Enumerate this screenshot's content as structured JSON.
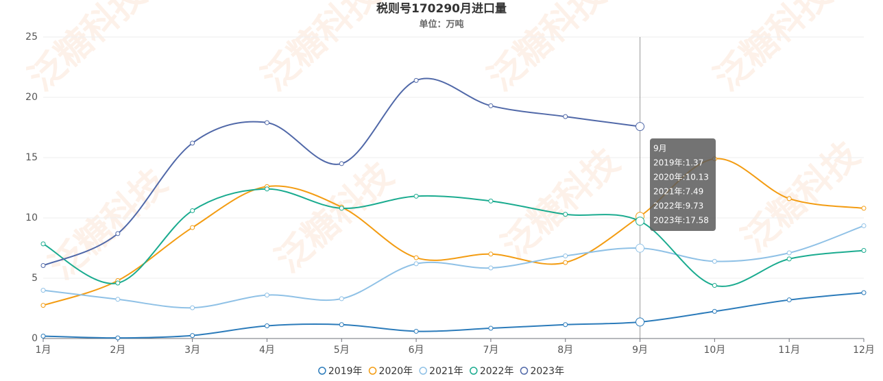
{
  "chart_data": {
    "type": "line",
    "title": "税则号170290月进口量",
    "subtitle": "单位：万吨",
    "watermark": "泛糖科技",
    "categories": [
      "1月",
      "2月",
      "3月",
      "4月",
      "5月",
      "6月",
      "7月",
      "8月",
      "9月",
      "10月",
      "11月",
      "12月"
    ],
    "series": [
      {
        "name": "2019年",
        "color": "#2b7bba",
        "values": [
          0.2,
          0.05,
          0.25,
          1.05,
          1.15,
          0.6,
          0.85,
          1.15,
          1.37,
          2.25,
          3.2,
          3.8
        ]
      },
      {
        "name": "2020年",
        "color": "#f39c12",
        "values": [
          2.75,
          4.8,
          9.2,
          12.6,
          10.9,
          6.7,
          7.0,
          6.3,
          10.13,
          14.9,
          11.6,
          10.8
        ]
      },
      {
        "name": "2021年",
        "color": "#8fc1e6",
        "values": [
          4.0,
          3.25,
          2.55,
          3.6,
          3.3,
          6.2,
          5.85,
          6.85,
          7.49,
          6.4,
          7.1,
          9.35
        ]
      },
      {
        "name": "2022年",
        "color": "#1aab8f",
        "values": [
          7.85,
          4.6,
          10.6,
          12.4,
          10.8,
          11.8,
          11.4,
          10.3,
          9.73,
          4.4,
          6.6,
          7.3
        ]
      },
      {
        "name": "2023年",
        "color": "#5068a8",
        "values": [
          6.05,
          8.7,
          16.2,
          17.9,
          14.5,
          21.4,
          19.3,
          18.4,
          17.58,
          null,
          null,
          null
        ]
      }
    ],
    "ylim": [
      0,
      25
    ],
    "yticks": [
      0,
      5,
      10,
      15,
      20,
      25
    ],
    "grid": true,
    "legend": "bottom",
    "tooltip": {
      "index": 8,
      "title": "9月",
      "lines": [
        "2019年:1.37",
        "2020年:10.13",
        "2021年:7.49",
        "2022年:9.73",
        "2023年:17.58"
      ]
    }
  }
}
